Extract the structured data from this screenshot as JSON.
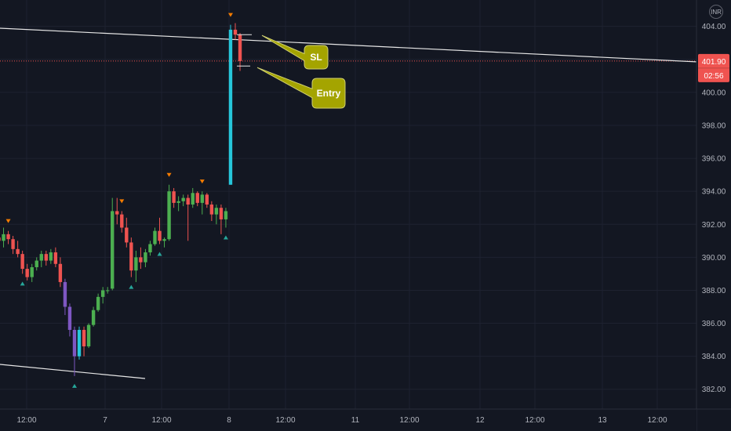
{
  "currency": "INR",
  "colors": {
    "background": "#131722",
    "grid": "#1e2230",
    "up": "#4caf50",
    "down": "#ef5350",
    "up_alt": "#26c6da",
    "down_alt": "#7e57c2",
    "trendline": "#e6e6e6",
    "price_line": "#ef5350",
    "callout_fill": "#a4a400",
    "callout_stroke": "#d0d070",
    "arrow_up": "#26a69a",
    "arrow_down": "#f57c00"
  },
  "price_tag": {
    "value": "401.90",
    "countdown": "02:56"
  },
  "callouts": {
    "sl": "SL",
    "entry": "Entry"
  },
  "chart_data": {
    "type": "candlestick",
    "ylim": [
      380.8,
      405.6
    ],
    "yticks": [
      "382.00",
      "384.00",
      "386.00",
      "388.00",
      "390.00",
      "392.00",
      "394.00",
      "396.00",
      "398.00",
      "400.00",
      "402.00",
      "404.00"
    ],
    "xticks": [
      "12:00",
      "7",
      "12:00",
      "8",
      "12:00",
      "11",
      "12:00",
      "12",
      "12:00",
      "13",
      "12:00"
    ],
    "current_price": 401.9,
    "candles": [
      [
        391.2,
        391.6,
        390.6,
        391.0
      ],
      [
        391.0,
        391.8,
        390.6,
        391.4
      ],
      [
        391.4,
        391.6,
        390.8,
        391.1
      ],
      [
        391.1,
        391.3,
        390.2,
        390.5
      ],
      [
        390.5,
        391.0,
        390.0,
        390.2
      ],
      [
        390.2,
        390.4,
        389.0,
        389.3
      ],
      [
        389.3,
        389.6,
        388.6,
        388.8
      ],
      [
        388.8,
        389.6,
        388.5,
        389.4
      ],
      [
        389.4,
        390.0,
        389.2,
        389.8
      ],
      [
        389.8,
        390.4,
        389.4,
        390.2
      ],
      [
        390.2,
        390.4,
        389.5,
        389.8
      ],
      [
        389.8,
        390.5,
        389.6,
        390.3
      ],
      [
        390.3,
        390.6,
        389.4,
        389.6
      ],
      [
        389.6,
        390.0,
        388.2,
        388.5
      ],
      [
        388.5,
        388.7,
        386.5,
        387.0
      ],
      [
        387.0,
        387.2,
        385.2,
        385.6
      ],
      [
        385.6,
        385.8,
        382.8,
        384.0
      ],
      [
        384.0,
        385.8,
        383.8,
        385.6
      ],
      [
        385.6,
        385.8,
        384.0,
        384.6
      ],
      [
        384.6,
        386.0,
        384.5,
        385.9
      ],
      [
        385.9,
        387.0,
        385.8,
        386.8
      ],
      [
        386.8,
        387.8,
        386.7,
        387.6
      ],
      [
        387.6,
        388.2,
        387.2,
        388.0
      ],
      [
        388.0,
        388.2,
        387.8,
        388.0
      ],
      [
        388.1,
        393.6,
        388.0,
        392.8
      ],
      [
        392.8,
        393.6,
        392.0,
        392.6
      ],
      [
        392.6,
        392.8,
        391.5,
        391.8
      ],
      [
        391.8,
        392.4,
        390.6,
        390.9
      ],
      [
        390.9,
        391.2,
        388.8,
        389.2
      ],
      [
        389.2,
        390.4,
        388.5,
        390.0
      ],
      [
        390.0,
        390.6,
        389.3,
        389.7
      ],
      [
        389.7,
        390.5,
        389.4,
        390.3
      ],
      [
        390.3,
        391.0,
        390.1,
        390.8
      ],
      [
        390.8,
        391.8,
        390.7,
        391.6
      ],
      [
        391.6,
        392.4,
        390.8,
        391.0
      ],
      [
        391.0,
        391.2,
        390.6,
        391.1
      ],
      [
        391.1,
        394.4,
        391.0,
        394.0
      ],
      [
        394.0,
        394.2,
        393.0,
        393.3
      ],
      [
        393.3,
        393.7,
        392.8,
        393.4
      ],
      [
        393.4,
        393.8,
        393.1,
        393.6
      ],
      [
        393.6,
        393.8,
        391.0,
        393.2
      ],
      [
        393.2,
        394.2,
        393.0,
        393.9
      ],
      [
        393.9,
        394.0,
        393.1,
        393.3
      ],
      [
        393.3,
        394.0,
        392.6,
        393.8
      ],
      [
        393.8,
        393.9,
        393.0,
        393.2
      ],
      [
        393.2,
        393.4,
        392.2,
        392.6
      ],
      [
        392.6,
        393.2,
        392.0,
        393.0
      ],
      [
        393.0,
        393.2,
        391.4,
        392.3
      ],
      [
        392.3,
        393.0,
        391.8,
        392.8
      ],
      [
        394.4,
        404.1,
        394.4,
        403.8
      ],
      [
        403.8,
        404.2,
        403.2,
        403.5
      ],
      [
        403.5,
        403.6,
        401.3,
        401.9
      ]
    ],
    "annotations": {
      "sl_price": 403.5,
      "entry_price": 401.6,
      "up_arrows_at": [
        5,
        16,
        28,
        34,
        48
      ],
      "down_arrows_at": [
        2,
        26,
        36,
        43,
        49
      ]
    }
  }
}
